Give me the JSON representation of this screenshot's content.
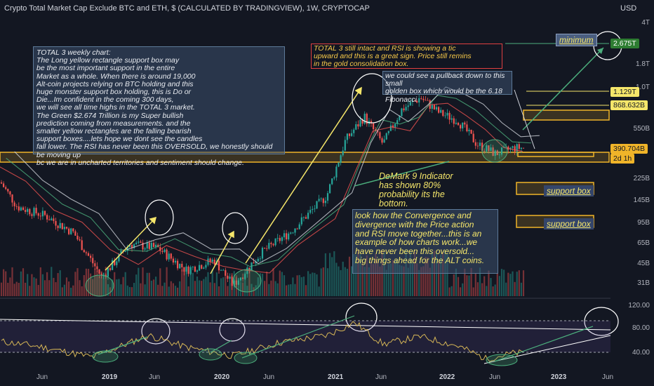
{
  "header": {
    "title": "Crypto Total Market Cap Exclude BTC and ETH, $ (CALCULATED BY TRADINGVIEW), 1W, CRYPTOCAP",
    "currency": "USD"
  },
  "notes": {
    "main": "TOTAL 3 weekly chart:\nThe Long yellow rectangle support box may\nbe the most important support in the entire\nMarket as a whole. When there is around 19,000\nAlt-coin projects relying on BTC holding and this\nhuge monster support box holding, this is Do or\nDie...Im confident in the coming 300 days,\nwe will see all time highs in the TOTAL 3 market.\nThe Green $2.674 Trillion is my Super bullish\nprediction coming from measurements. and the\nsmaller yellow rectangles are the falling bearish\nsupport boxes....lets hope we dont see the candles\nfall lower. The RSI has never been this OVERSOLD, we honestly should be moving up\nbc we are in uncharted territories and sentiment should change.",
    "red": "TOTAL 3 still intact and RSI is showing a tic\nupward and this is a great sign. Price still remins\nin the gold consolidation box.",
    "pullback": "we could see a pullback down to this small\ngolden box which would be the 6.18\nFibonacci",
    "demark": "DeMark 9 Indicator\nhas shown 80%\nprobability its the\nbottom.",
    "convergence": "look how the Convergence and\ndivergence with the Price action\nand RSI move together...this is an\nexample of how charts work...we\nhave never been this oversold...\nbig things ahead for the ALT coins."
  },
  "labels": {
    "minimum": "minimum",
    "support_box_1": "support box",
    "support_box_2": "support box"
  },
  "price_tags": {
    "target": "2.675T",
    "level1": "1.129T",
    "level2": "868.632B",
    "current": "390.704B",
    "countdown": "2d 1h"
  },
  "colors": {
    "background": "#131722",
    "candle_up": "#26a69a",
    "candle_down": "#ef5350",
    "annotation_yellow": "#f5e66a",
    "support_box": "#f0b429",
    "trend_green": "#4caf7d",
    "rsi_line": "#d6b656",
    "target_green": "#2e7d32"
  },
  "chart_data": [
    {
      "type": "candlestick",
      "log_scale": true,
      "y_axis_labels": [
        "4T",
        "1.8T",
        "1.0T",
        "550B",
        "225B",
        "145B",
        "95B",
        "65B",
        "45B",
        "31B"
      ],
      "x_axis_labels": [
        "Jun",
        "2019",
        "Jun",
        "2020",
        "Jun",
        "2021",
        "Jun",
        "2022",
        "Jun",
        "2023",
        "Jun"
      ],
      "series": [
        {
          "dates": [
            "2018-01",
            "2018-04",
            "2018-07",
            "2018-10",
            "2019-01",
            "2019-04",
            "2019-07",
            "2019-10",
            "2020-01",
            "2020-03",
            "2020-06",
            "2020-09",
            "2021-01",
            "2021-03",
            "2021-05",
            "2021-07",
            "2021-09",
            "2021-11",
            "2022-01",
            "2022-03",
            "2022-05",
            "2022-07",
            "2022-09"
          ],
          "values": [
            280,
            130,
            110,
            80,
            35,
            65,
            60,
            40,
            48,
            30,
            55,
            80,
            160,
            450,
            700,
            420,
            800,
            1000,
            750,
            650,
            420,
            350,
            390
          ]
        }
      ]
    },
    {
      "type": "line",
      "name": "RSI",
      "y_axis_labels": [
        "120.00",
        "80.00",
        "40.00"
      ],
      "series": [
        {
          "dates": [
            "2018-01",
            "2018-06",
            "2018-12",
            "2019-06",
            "2019-10",
            "2020-03",
            "2020-08",
            "2021-01",
            "2021-04",
            "2021-07",
            "2021-11",
            "2022-03",
            "2022-06",
            "2022-09"
          ],
          "values": [
            62,
            52,
            33,
            70,
            50,
            35,
            58,
            70,
            92,
            55,
            68,
            52,
            30,
            40
          ]
        }
      ]
    }
  ]
}
